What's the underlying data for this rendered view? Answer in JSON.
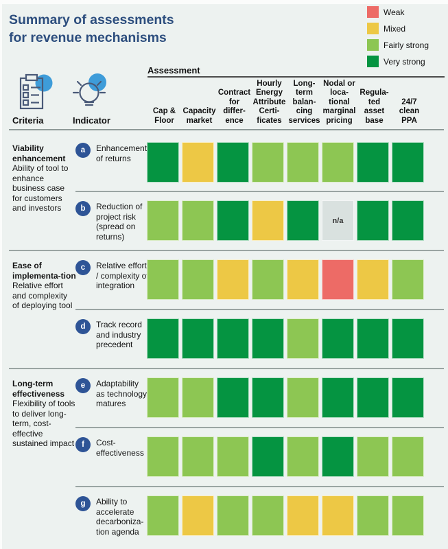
{
  "title": "Summary of assessments\nfor revenue mechanisms",
  "icons": {
    "criteria": "checklist-clipboard-icon",
    "indicator": "lightbulb-idea-icon"
  },
  "colors": {
    "background": "#edf2f0",
    "title": "#2d4e7e",
    "indicator_badge": "#2e5496",
    "icon_accent": "#3e9cd9",
    "icon_outline": "#4a5a78"
  },
  "header": {
    "assessment_label": "Assessment",
    "criteria_label": "Criteria",
    "indicator_label": "Indicator",
    "columns": [
      "Cap &\nFloor",
      "Capacity\nmarket",
      "Contract\nfor\ndiffer-\nence",
      "Hourly\nEnergy\nAttribute\nCerti-\nficates",
      "Long-\nterm\nbalan-\ncing\nservices",
      "Nodal or\nloca-\ntional\nmarginal\npricing",
      "Regula-\nted\nasset\nbase",
      "24/7\nclean\nPPA"
    ]
  },
  "legend": {
    "items": [
      {
        "id": "weak",
        "label": "Weak",
        "color": "#ed6b66"
      },
      {
        "id": "mixed",
        "label": "Mixed",
        "color": "#edc845"
      },
      {
        "id": "fairly_strong",
        "label": "Fairly strong",
        "color": "#8dc653"
      },
      {
        "id": "very_strong",
        "label": "Very strong",
        "color": "#059441"
      }
    ]
  },
  "ratings": {
    "weak": {
      "label": "Weak",
      "color": "#ed6b66"
    },
    "mixed": {
      "label": "Mixed",
      "color": "#edc845"
    },
    "fairly_strong": {
      "label": "Fairly strong",
      "color": "#8dc653"
    },
    "very_strong": {
      "label": "Very strong",
      "color": "#059441"
    },
    "na": {
      "label": "n/a",
      "color": "#d9e1df",
      "text_color": "#333333"
    }
  },
  "groups": [
    {
      "name": "Viability enhancement",
      "description": "Ability of tool to enhance business case for customers and investors",
      "rows": [
        {
          "letter": "a",
          "label": "Enhancement of returns",
          "cells": [
            "very_strong",
            "mixed",
            "very_strong",
            "fairly_strong",
            "fairly_strong",
            "fairly_strong",
            "very_strong",
            "very_strong"
          ]
        },
        {
          "letter": "b",
          "label": "Reduction of project risk (spread on returns)",
          "cells": [
            "fairly_strong",
            "fairly_strong",
            "very_strong",
            "mixed",
            "very_strong",
            "na",
            "very_strong",
            "very_strong"
          ]
        }
      ]
    },
    {
      "name": "Ease of implementa-tion",
      "description": "Relative effort and complexity of deploying tool",
      "rows": [
        {
          "letter": "c",
          "label": "Relative effort / complexity of integration",
          "cells": [
            "fairly_strong",
            "fairly_strong",
            "mixed",
            "fairly_strong",
            "mixed",
            "weak",
            "mixed",
            "fairly_strong"
          ]
        },
        {
          "letter": "d",
          "label": "Track record and industry precedent",
          "cells": [
            "very_strong",
            "very_strong",
            "very_strong",
            "very_strong",
            "fairly_strong",
            "very_strong",
            "very_strong",
            "very_strong"
          ]
        }
      ]
    },
    {
      "name": "Long-term effectiveness",
      "description": "Flexibility of tools to deliver long-term, cost-effective sustained impact",
      "rows": [
        {
          "letter": "e",
          "label": "Adaptability as technology matures",
          "cells": [
            "fairly_strong",
            "fairly_strong",
            "very_strong",
            "very_strong",
            "fairly_strong",
            "very_strong",
            "very_strong",
            "very_strong"
          ]
        },
        {
          "letter": "f",
          "label": "Cost-effectiveness",
          "cells": [
            "fairly_strong",
            "fairly_strong",
            "fairly_strong",
            "very_strong",
            "fairly_strong",
            "very_strong",
            "fairly_strong",
            "fairly_strong"
          ]
        },
        {
          "letter": "g",
          "label": "Ability to accelerate decarboniza-tion agenda",
          "cells": [
            "fairly_strong",
            "mixed",
            "fairly_strong",
            "fairly_strong",
            "mixed",
            "mixed",
            "fairly_strong",
            "fairly_strong"
          ]
        }
      ]
    }
  ],
  "chart_data": {
    "type": "heatmap",
    "title": "Summary of assessments for revenue mechanisms",
    "legend": [
      "Weak",
      "Mixed",
      "Fairly strong",
      "Very strong"
    ],
    "legend_position": "top-right",
    "x_label": "Assessment",
    "x_categories": [
      "Cap & Floor",
      "Capacity market",
      "Contract for difference",
      "Hourly Energy Attribute Certificates",
      "Long-term balancing services",
      "Nodal or locational marginal pricing",
      "Regulated asset base",
      "24/7 clean PPA"
    ],
    "y_groups": [
      {
        "criteria": "Viability enhancement",
        "indicators": [
          "a Enhancement of returns",
          "b Reduction of project risk (spread on returns)"
        ]
      },
      {
        "criteria": "Ease of implementation",
        "indicators": [
          "c Relative effort / complexity of integration",
          "d Track record and industry precedent"
        ]
      },
      {
        "criteria": "Long-term effectiveness",
        "indicators": [
          "e Adaptability as technology matures",
          "f Cost-effectiveness",
          "g Ability to accelerate decarbonization agenda"
        ]
      }
    ],
    "values": [
      [
        "Very strong",
        "Mixed",
        "Very strong",
        "Fairly strong",
        "Fairly strong",
        "Fairly strong",
        "Very strong",
        "Very strong"
      ],
      [
        "Fairly strong",
        "Fairly strong",
        "Very strong",
        "Mixed",
        "Very strong",
        "n/a",
        "Very strong",
        "Very strong"
      ],
      [
        "Fairly strong",
        "Fairly strong",
        "Mixed",
        "Fairly strong",
        "Mixed",
        "Weak",
        "Mixed",
        "Fairly strong"
      ],
      [
        "Very strong",
        "Very strong",
        "Very strong",
        "Very strong",
        "Fairly strong",
        "Very strong",
        "Very strong",
        "Very strong"
      ],
      [
        "Fairly strong",
        "Fairly strong",
        "Very strong",
        "Very strong",
        "Fairly strong",
        "Very strong",
        "Very strong",
        "Very strong"
      ],
      [
        "Fairly strong",
        "Fairly strong",
        "Fairly strong",
        "Very strong",
        "Fairly strong",
        "Very strong",
        "Fairly strong",
        "Fairly strong"
      ],
      [
        "Fairly strong",
        "Mixed",
        "Fairly strong",
        "Fairly strong",
        "Mixed",
        "Mixed",
        "Fairly strong",
        "Fairly strong"
      ]
    ]
  }
}
